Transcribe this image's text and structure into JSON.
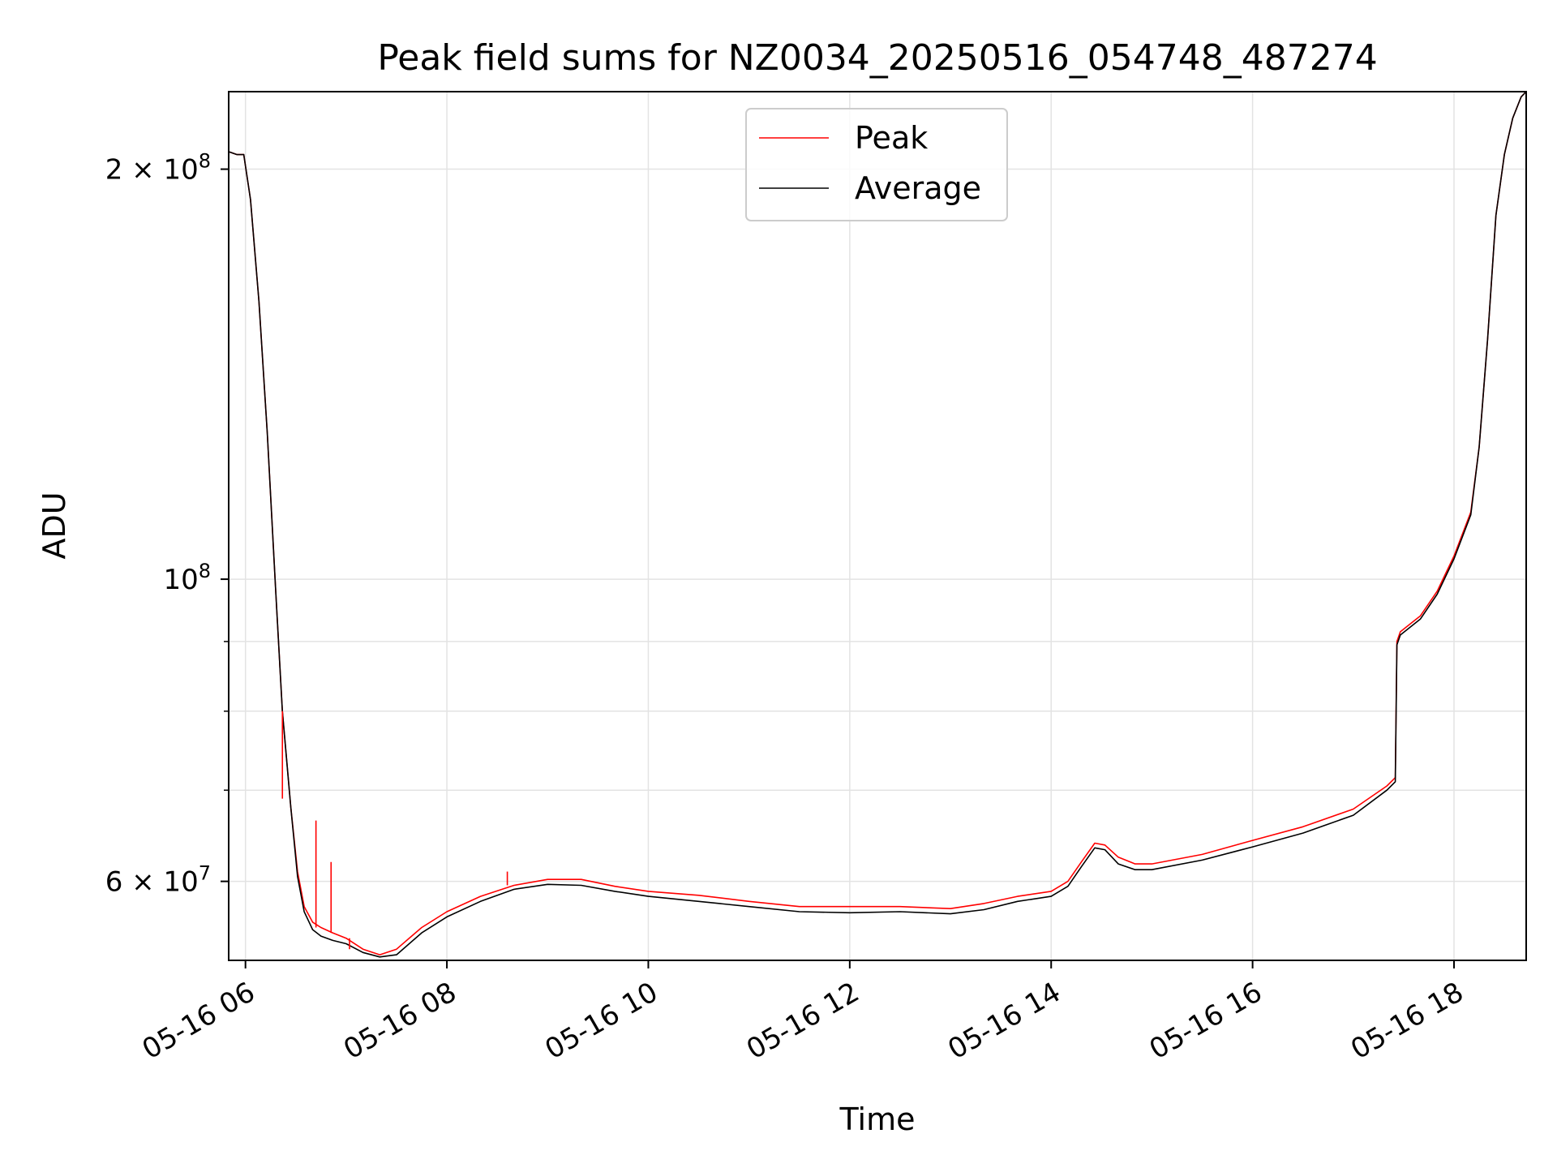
{
  "chart_data": {
    "type": "line",
    "title": "Peak field sums for NZ0034_20250516_054748_487274",
    "xlabel": "Time",
    "ylabel": "ADU",
    "xlim": [
      "2025-05-16T05:50",
      "2025-05-16T18:43"
    ],
    "ylim": [
      52500000,
      228000000
    ],
    "yscale": "log",
    "grid": true,
    "legend_position": "top-center",
    "x_ticks": [
      {
        "value": "2025-05-16T06:00",
        "label": "05-16 06"
      },
      {
        "value": "2025-05-16T08:00",
        "label": "05-16 08"
      },
      {
        "value": "2025-05-16T10:00",
        "label": "05-16 10"
      },
      {
        "value": "2025-05-16T12:00",
        "label": "05-16 12"
      },
      {
        "value": "2025-05-16T14:00",
        "label": "05-16 14"
      },
      {
        "value": "2025-05-16T16:00",
        "label": "05-16 16"
      },
      {
        "value": "2025-05-16T18:00",
        "label": "05-16 18"
      }
    ],
    "y_major_ticks": [
      {
        "value": 60000000,
        "mantissa": "6",
        "exponent": "7"
      },
      {
        "value": 100000000,
        "mantissa": "",
        "exponent": "8"
      },
      {
        "value": 200000000,
        "mantissa": "2",
        "exponent": "8"
      }
    ],
    "y_minor_ticks": [
      70000000,
      80000000,
      90000000
    ],
    "series": [
      {
        "name": "Peak",
        "color": "#ff0000",
        "x": [
          "2025-05-16T05:50",
          "2025-05-16T05:55",
          "2025-05-16T05:59",
          "2025-05-16T06:03",
          "2025-05-16T06:08",
          "2025-05-16T06:13",
          "2025-05-16T06:18",
          "2025-05-16T06:22",
          "2025-05-16T06:27",
          "2025-05-16T06:31",
          "2025-05-16T06:35",
          "2025-05-16T06:40",
          "2025-05-16T06:45",
          "2025-05-16T06:52",
          "2025-05-16T07:00",
          "2025-05-16T07:10",
          "2025-05-16T07:20",
          "2025-05-16T07:30",
          "2025-05-16T07:45",
          "2025-05-16T08:00",
          "2025-05-16T08:20",
          "2025-05-16T08:40",
          "2025-05-16T09:00",
          "2025-05-16T09:20",
          "2025-05-16T09:40",
          "2025-05-16T10:00",
          "2025-05-16T10:30",
          "2025-05-16T11:00",
          "2025-05-16T11:30",
          "2025-05-16T12:00",
          "2025-05-16T12:30",
          "2025-05-16T13:00",
          "2025-05-16T13:20",
          "2025-05-16T13:40",
          "2025-05-16T14:00",
          "2025-05-16T14:10",
          "2025-05-16T14:18",
          "2025-05-16T14:26",
          "2025-05-16T14:32",
          "2025-05-16T14:40",
          "2025-05-16T14:50",
          "2025-05-16T15:00",
          "2025-05-16T15:30",
          "2025-05-16T16:00",
          "2025-05-16T16:30",
          "2025-05-16T17:00",
          "2025-05-16T17:20",
          "2025-05-16T17:25",
          "2025-05-16T17:26",
          "2025-05-16T17:28",
          "2025-05-16T17:40",
          "2025-05-16T17:50",
          "2025-05-16T18:00",
          "2025-05-16T18:10",
          "2025-05-16T18:15",
          "2025-05-16T18:20",
          "2025-05-16T18:25",
          "2025-05-16T18:30",
          "2025-05-16T18:35",
          "2025-05-16T18:40",
          "2025-05-16T18:43"
        ],
        "y": [
          206000000,
          205000000,
          205000000,
          190000000,
          160000000,
          128000000,
          98000000,
          80000000,
          68000000,
          61000000,
          57500000,
          56000000,
          55500000,
          55000000,
          54500000,
          53500000,
          53000000,
          53500000,
          55500000,
          57000000,
          58500000,
          59600000,
          60200000,
          60200000,
          59500000,
          59000000,
          58600000,
          58000000,
          57500000,
          57500000,
          57500000,
          57300000,
          57800000,
          58500000,
          59000000,
          60000000,
          62000000,
          64000000,
          63800000,
          62500000,
          61800000,
          61800000,
          62800000,
          64300000,
          65800000,
          67800000,
          70500000,
          71500000,
          90000000,
          91500000,
          94000000,
          98000000,
          104000000,
          112000000,
          125000000,
          150000000,
          185000000,
          205000000,
          218000000,
          226000000,
          228000000
        ]
      },
      {
        "name": "Average",
        "color": "#000000",
        "x": [
          "2025-05-16T05:50",
          "2025-05-16T05:55",
          "2025-05-16T05:59",
          "2025-05-16T06:03",
          "2025-05-16T06:08",
          "2025-05-16T06:13",
          "2025-05-16T06:18",
          "2025-05-16T06:22",
          "2025-05-16T06:27",
          "2025-05-16T06:31",
          "2025-05-16T06:35",
          "2025-05-16T06:40",
          "2025-05-16T06:45",
          "2025-05-16T06:52",
          "2025-05-16T07:00",
          "2025-05-16T07:10",
          "2025-05-16T07:20",
          "2025-05-16T07:30",
          "2025-05-16T07:45",
          "2025-05-16T08:00",
          "2025-05-16T08:20",
          "2025-05-16T08:40",
          "2025-05-16T09:00",
          "2025-05-16T09:20",
          "2025-05-16T09:40",
          "2025-05-16T10:00",
          "2025-05-16T10:30",
          "2025-05-16T11:00",
          "2025-05-16T11:30",
          "2025-05-16T12:00",
          "2025-05-16T12:30",
          "2025-05-16T13:00",
          "2025-05-16T13:20",
          "2025-05-16T13:40",
          "2025-05-16T14:00",
          "2025-05-16T14:10",
          "2025-05-16T14:18",
          "2025-05-16T14:26",
          "2025-05-16T14:32",
          "2025-05-16T14:40",
          "2025-05-16T14:50",
          "2025-05-16T15:00",
          "2025-05-16T15:30",
          "2025-05-16T16:00",
          "2025-05-16T16:30",
          "2025-05-16T17:00",
          "2025-05-16T17:20",
          "2025-05-16T17:25",
          "2025-05-16T17:26",
          "2025-05-16T17:28",
          "2025-05-16T17:40",
          "2025-05-16T17:50",
          "2025-05-16T18:00",
          "2025-05-16T18:10",
          "2025-05-16T18:15",
          "2025-05-16T18:20",
          "2025-05-16T18:25",
          "2025-05-16T18:30",
          "2025-05-16T18:35",
          "2025-05-16T18:40",
          "2025-05-16T18:43"
        ],
        "y": [
          206000000,
          205000000,
          205000000,
          190000000,
          160000000,
          128000000,
          98000000,
          80000000,
          68000000,
          60500000,
          57000000,
          55300000,
          54700000,
          54300000,
          54000000,
          53200000,
          52800000,
          53000000,
          55000000,
          56500000,
          58000000,
          59200000,
          59700000,
          59600000,
          59000000,
          58500000,
          58000000,
          57500000,
          57000000,
          56900000,
          57000000,
          56800000,
          57200000,
          58000000,
          58500000,
          59500000,
          61500000,
          63500000,
          63300000,
          61800000,
          61200000,
          61200000,
          62200000,
          63600000,
          65100000,
          67100000,
          70000000,
          71000000,
          89500000,
          91000000,
          93500000,
          97500000,
          103500000,
          111500000,
          125000000,
          150000000,
          185000000,
          205000000,
          218000000,
          226000000,
          228000000
        ]
      }
    ],
    "spikes": [
      {
        "series": "Peak",
        "x": "2025-05-16T06:22",
        "y": 69000000
      },
      {
        "series": "Peak",
        "x": "2025-05-16T06:42",
        "y": 66500000
      },
      {
        "series": "Peak",
        "x": "2025-05-16T06:51",
        "y": 62000000
      },
      {
        "series": "Peak",
        "x": "2025-05-16T07:02",
        "y": 54500000
      },
      {
        "series": "Peak",
        "x": "2025-05-16T08:36",
        "y": 61000000
      }
    ]
  }
}
